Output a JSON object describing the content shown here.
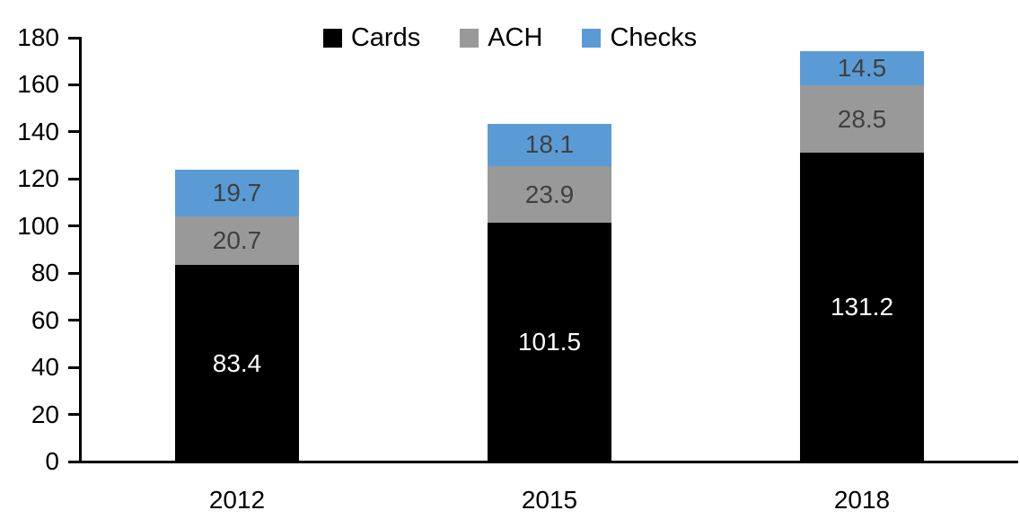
{
  "chart_data": {
    "type": "bar",
    "stacked": true,
    "title": "",
    "xlabel": "",
    "ylabel": "",
    "categories": [
      "2012",
      "2015",
      "2018"
    ],
    "series": [
      {
        "name": "Cards",
        "color": "#000000",
        "label_color": "#ffffff",
        "values": [
          83.4,
          101.5,
          131.2
        ]
      },
      {
        "name": "ACH",
        "color": "#999999",
        "label_color": "#404040",
        "values": [
          20.7,
          23.9,
          28.5
        ]
      },
      {
        "name": "Checks",
        "color": "#5B9BD5",
        "label_color": "#404040",
        "values": [
          19.7,
          18.1,
          14.5
        ]
      }
    ],
    "ylim": [
      0,
      180
    ],
    "ytick_step": 20,
    "yticks": [
      "0",
      "20",
      "40",
      "60",
      "80",
      "100",
      "120",
      "140",
      "160",
      "180"
    ],
    "grid": false,
    "legend_position": "top-center",
    "data_labels": true,
    "axis_color": "#000000"
  }
}
